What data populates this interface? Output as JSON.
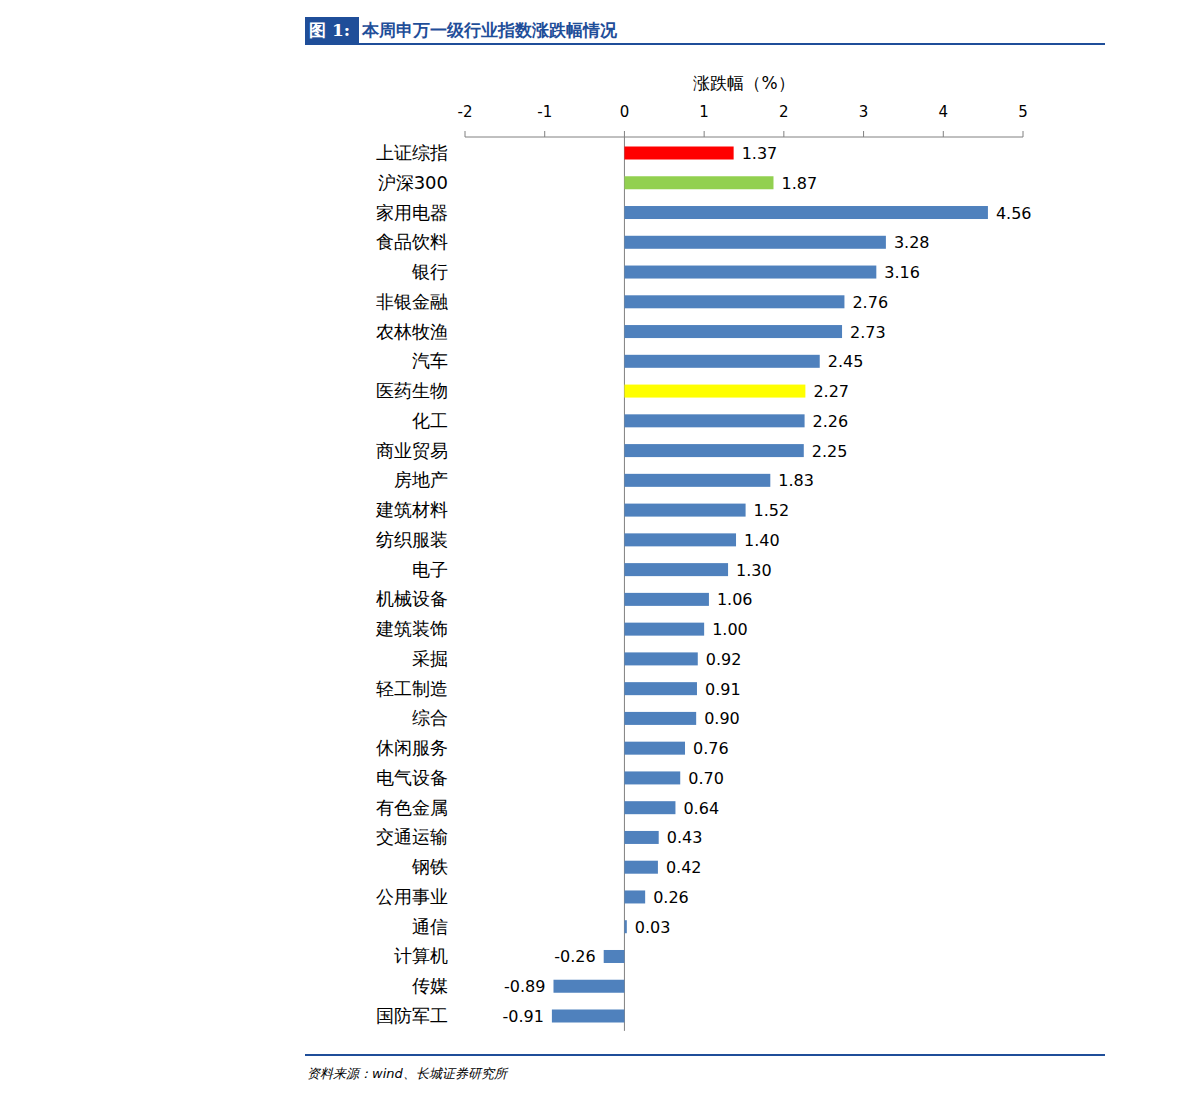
{
  "chart_data": {
    "type": "bar",
    "orientation": "horizontal",
    "figure_label": "图 1:",
    "title": "本周申万一级行业指数涨跌幅情况",
    "xlabel": "涨跌幅（%）",
    "source": "资料来源：wind、长城证券研究所",
    "categories": [
      "上证综指",
      "沪深300",
      "家用电器",
      "食品饮料",
      "银行",
      "非银金融",
      "农林牧渔",
      "汽车",
      "医药生物",
      "化工",
      "商业贸易",
      "房地产",
      "建筑材料",
      "纺织服装",
      "电子",
      "机械设备",
      "建筑装饰",
      "采掘",
      "轻工制造",
      "综合",
      "休闲服务",
      "电气设备",
      "有色金属",
      "交通运输",
      "钢铁",
      "公用事业",
      "通信",
      "计算机",
      "传媒",
      "国防军工"
    ],
    "values": [
      1.37,
      1.87,
      4.56,
      3.28,
      3.16,
      2.76,
      2.73,
      2.45,
      2.27,
      2.26,
      2.25,
      1.83,
      1.52,
      1.4,
      1.3,
      1.06,
      1.0,
      0.92,
      0.91,
      0.9,
      0.76,
      0.7,
      0.64,
      0.43,
      0.42,
      0.26,
      0.03,
      -0.26,
      -0.89,
      -0.91
    ],
    "value_labels": [
      "1.37",
      "1.87",
      "4.56",
      "3.28",
      "3.16",
      "2.76",
      "2.73",
      "2.45",
      "2.27",
      "2.26",
      "2.25",
      "1.83",
      "1.52",
      "1.40",
      "1.30",
      "1.06",
      "1.00",
      "0.92",
      "0.91",
      "0.90",
      "0.76",
      "0.70",
      "0.64",
      "0.43",
      "0.42",
      "0.26",
      "0.03",
      "-0.26",
      "-0.89",
      "-0.91"
    ],
    "colors": [
      "#ff0000",
      "#92d050",
      "#4f81bd",
      "#4f81bd",
      "#4f81bd",
      "#4f81bd",
      "#4f81bd",
      "#4f81bd",
      "#ffff00",
      "#4f81bd",
      "#4f81bd",
      "#4f81bd",
      "#4f81bd",
      "#4f81bd",
      "#4f81bd",
      "#4f81bd",
      "#4f81bd",
      "#4f81bd",
      "#4f81bd",
      "#4f81bd",
      "#4f81bd",
      "#4f81bd",
      "#4f81bd",
      "#4f81bd",
      "#4f81bd",
      "#4f81bd",
      "#4f81bd",
      "#4f81bd",
      "#4f81bd",
      "#4f81bd"
    ],
    "xlim": [
      -2,
      5
    ],
    "xticks": [
      -2,
      -1,
      0,
      1,
      2,
      3,
      4,
      5
    ],
    "data_labels": true,
    "grid": false
  }
}
